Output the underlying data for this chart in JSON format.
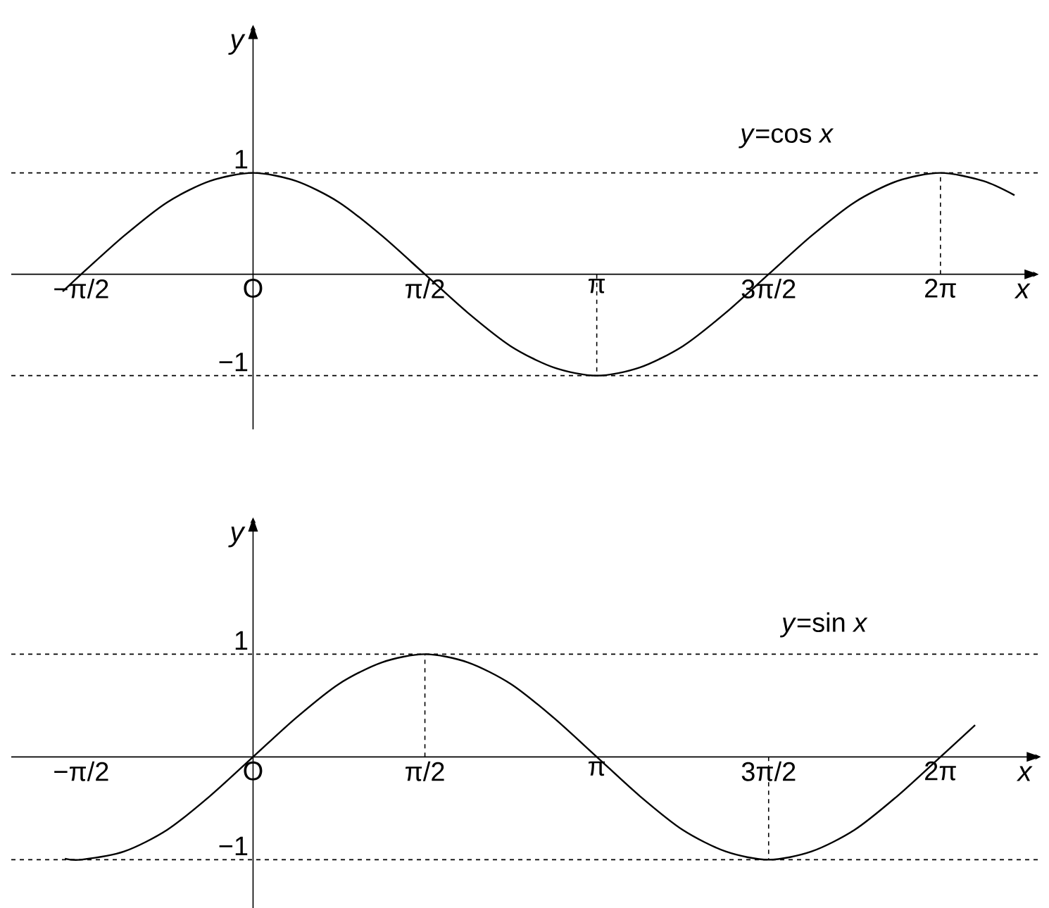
{
  "chart_data": [
    {
      "type": "line",
      "xlabel": "x",
      "ylabel": "y",
      "xlim": [
        -2.21,
        7.18
      ],
      "ylim": [
        -1.53,
        2.46
      ],
      "marker": "none",
      "xticks": [
        {
          "value": -1.5708,
          "label": "−π/2"
        },
        {
          "value": 0,
          "label": "O"
        },
        {
          "value": 1.5708,
          "label": "π/2"
        },
        {
          "value": 3.1416,
          "label": "π"
        },
        {
          "value": 4.7124,
          "label": "3π/2"
        },
        {
          "value": 6.2832,
          "label": "2π"
        }
      ],
      "yticks": [
        1,
        {
          "value": -1,
          "label": "−1"
        }
      ],
      "series": [
        {
          "color": "#000000",
          "line_style": "solid",
          "x": [
            -1.74,
            -1.571,
            -1.178,
            -0.785,
            -0.393,
            0,
            0.393,
            0.785,
            1.178,
            1.571,
            1.963,
            2.356,
            2.749,
            3.142,
            3.534,
            3.927,
            4.32,
            4.712,
            5.105,
            5.498,
            5.89,
            6.283,
            6.676,
            6.96
          ],
          "values": [
            -0.17,
            0,
            0.38,
            0.71,
            0.92,
            1,
            0.92,
            0.71,
            0.38,
            0,
            -0.38,
            -0.71,
            -0.92,
            -1,
            -0.92,
            -0.71,
            -0.38,
            0,
            0.38,
            0.71,
            0.92,
            1,
            0.92,
            0.78
          ]
        },
        {
          "color": "#000000",
          "line_style": "dashed",
          "x": [
            3.1416,
            3.1416
          ],
          "values": [
            0,
            -1
          ]
        },
        {
          "color": "#000000",
          "line_style": "dashed",
          "x": [
            6.2832,
            6.2832
          ],
          "values": [
            0,
            1
          ]
        }
      ],
      "ref_lines": [
        {
          "axis": "y",
          "value": 1,
          "line_style": "dashed"
        },
        {
          "axis": "y",
          "value": -1,
          "line_style": "dashed"
        }
      ],
      "annotations": [
        "*y*=cos *x*"
      ]
    },
    {
      "type": "line",
      "xlabel": "x",
      "ylabel": "y",
      "xlim": [
        -2.21,
        7.2
      ],
      "ylim": [
        -1.47,
        2.33
      ],
      "marker": "none",
      "xticks": [
        {
          "value": -1.5708,
          "label": "−π/2"
        },
        {
          "value": 0,
          "label": "O"
        },
        {
          "value": 1.5708,
          "label": "π/2"
        },
        {
          "value": 3.1416,
          "label": "π"
        },
        {
          "value": 4.7124,
          "label": "3π/2"
        },
        {
          "value": 6.2832,
          "label": "2π"
        }
      ],
      "yticks": [
        1,
        {
          "value": -1,
          "label": "−1"
        }
      ],
      "series": [
        {
          "color": "#000000",
          "line_style": "solid",
          "x": [
            -1.72,
            -1.571,
            -1.178,
            -0.785,
            -0.393,
            0,
            0.393,
            0.785,
            1.178,
            1.571,
            1.963,
            2.356,
            2.749,
            3.142,
            3.534,
            3.927,
            4.32,
            4.712,
            5.105,
            5.498,
            5.89,
            6.283,
            6.6
          ],
          "values": [
            -0.99,
            -1,
            -0.92,
            -0.71,
            -0.38,
            0,
            0.38,
            0.71,
            0.92,
            1,
            0.92,
            0.71,
            0.38,
            0,
            -0.38,
            -0.71,
            -0.92,
            -1,
            -0.92,
            -0.71,
            -0.38,
            0,
            0.31
          ]
        },
        {
          "color": "#000000",
          "line_style": "dashed",
          "x": [
            1.5708,
            1.5708
          ],
          "values": [
            0,
            1
          ]
        },
        {
          "color": "#000000",
          "line_style": "dashed",
          "x": [
            4.7124,
            4.7124
          ],
          "values": [
            0,
            -1
          ]
        }
      ],
      "ref_lines": [
        {
          "axis": "y",
          "value": 1,
          "line_style": "dashed"
        },
        {
          "axis": "y",
          "value": -1,
          "line_style": "dashed"
        }
      ],
      "annotations": [
        "*y*=sin *x*"
      ]
    }
  ]
}
